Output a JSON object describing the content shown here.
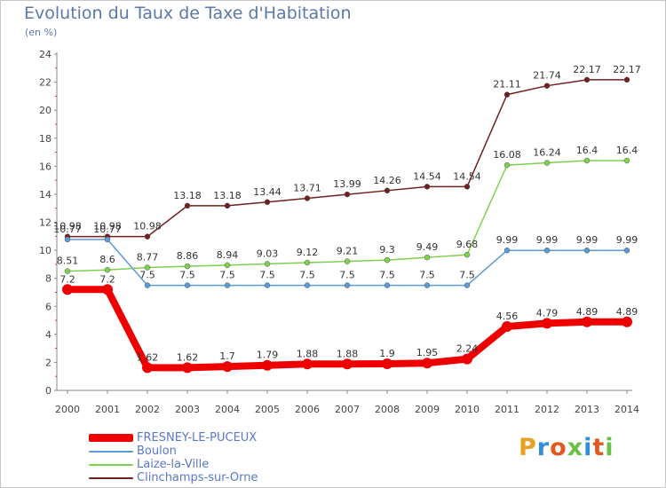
{
  "header": {
    "title": "Evolution du Taux de Taxe d'Habitation",
    "unit": "(en %)"
  },
  "brand": {
    "text": "Proxiti",
    "colors": [
      "#e8a020",
      "#2f8fd8",
      "#e05a20",
      "#6bc048",
      "#2f8fd8",
      "#e05a20",
      "#6bc048"
    ]
  },
  "chart_data": {
    "type": "line",
    "x": [
      "2000",
      "2001",
      "2002",
      "2003",
      "2004",
      "2005",
      "2006",
      "2007",
      "2008",
      "2009",
      "2010",
      "2011",
      "2012",
      "2013",
      "2014"
    ],
    "ylim": [
      0,
      24
    ],
    "yticks": [
      0,
      2,
      4,
      6,
      8,
      10,
      12,
      14,
      16,
      18,
      20,
      22,
      24
    ],
    "grid": false,
    "legend_position": "bottom-left",
    "series": [
      {
        "name": "FRESNEY-LE-PUCEUX",
        "color": "#ee0000",
        "values": [
          7.2,
          7.2,
          1.62,
          1.62,
          1.7,
          1.79,
          1.88,
          1.88,
          1.9,
          1.95,
          2.24,
          4.56,
          4.79,
          4.89,
          4.89
        ],
        "labels": [
          "7.2",
          "7.2",
          "1.62",
          "1.62",
          "1.7",
          "1.79",
          "1.88",
          "1.88",
          "1.9",
          "1.95",
          "2.24",
          "4.56",
          "4.79",
          "4.89",
          "4.89"
        ]
      },
      {
        "name": "Boulon",
        "color": "#5b9bd5",
        "values": [
          10.77,
          10.77,
          7.5,
          7.5,
          7.5,
          7.5,
          7.5,
          7.5,
          7.5,
          7.5,
          7.5,
          9.99,
          9.99,
          9.99,
          9.99
        ],
        "labels": [
          "10.77",
          "10.77",
          "7.5",
          "7.5",
          "7.5",
          "7.5",
          "7.5",
          "7.5",
          "7.5",
          "7.5",
          "7.5",
          "9.99",
          "9.99",
          "9.99",
          "9.99"
        ]
      },
      {
        "name": "Laize-la-Ville",
        "color": "#80d050",
        "values": [
          8.51,
          8.6,
          8.77,
          8.86,
          8.94,
          9.03,
          9.12,
          9.21,
          9.3,
          9.49,
          9.68,
          16.08,
          16.24,
          16.4,
          16.4
        ],
        "labels": [
          "8.51",
          "8.6",
          "8.77",
          "8.86",
          "8.94",
          "9.03",
          "9.12",
          "9.21",
          "9.3",
          "9.49",
          "9.68",
          "16.08",
          "16.24",
          "16.4",
          "16.4"
        ]
      },
      {
        "name": "Clinchamps-sur-Orne",
        "color": "#702020",
        "values": [
          10.98,
          10.98,
          10.98,
          13.18,
          13.18,
          13.44,
          13.71,
          13.99,
          14.26,
          14.54,
          14.54,
          21.11,
          21.74,
          22.17,
          22.17
        ],
        "labels": [
          "10.98",
          "10.98",
          "10.98",
          "13.18",
          "13.18",
          "13.44",
          "13.71",
          "13.99",
          "14.26",
          "14.54",
          "14.54",
          "21.11",
          "21.74",
          "22.17",
          "22.17"
        ]
      }
    ]
  }
}
